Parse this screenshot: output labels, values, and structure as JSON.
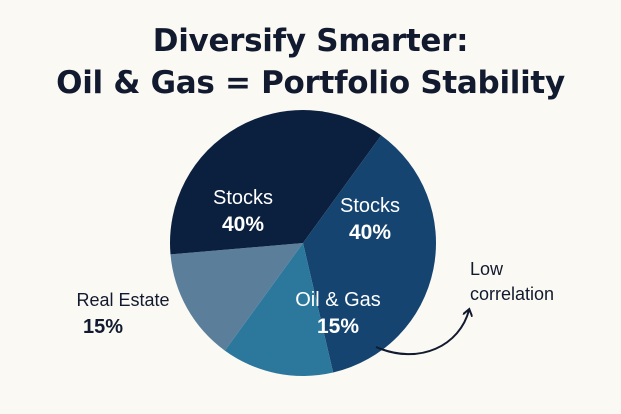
{
  "chart_data": {
    "type": "pie",
    "title": "Diversify Smarter: Oil & Gas = Portfolio Stability",
    "title_lines": [
      "Diversify Smarter:",
      "Oil & Gas = Portfolio Stability"
    ],
    "slices": [
      {
        "label": "Stocks",
        "value": 40,
        "value_label": "40%",
        "color": "#0b1f3f"
      },
      {
        "label": "Stocks",
        "value": 40,
        "value_label": "40%",
        "color": "#14446f"
      },
      {
        "label": "Oil & Gas",
        "value": 15,
        "value_label": "15%",
        "color": "#2c789c"
      },
      {
        "label": "Real Estate",
        "value": 15,
        "value_label": "15%",
        "color": "#5b7f9b"
      }
    ],
    "annotation": {
      "lines": [
        "Low",
        "correlation"
      ],
      "points_to": "Oil & Gas"
    }
  }
}
